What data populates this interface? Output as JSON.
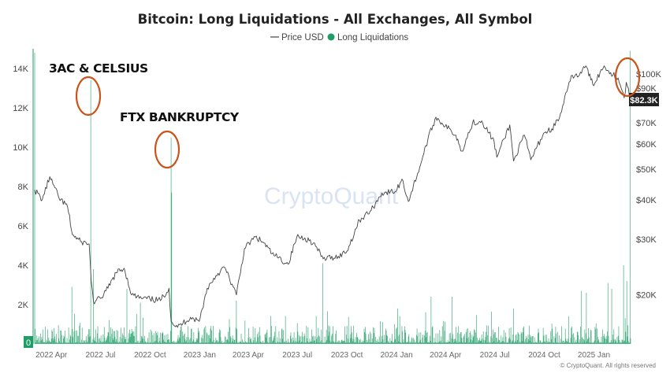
{
  "chart_data": {
    "type": "bar",
    "title": "Bitcoin: Long Liquidations - All Exchanges, All Symbol",
    "legend": {
      "placement": "top-center",
      "entries": [
        {
          "label": "Price USD",
          "color": "#444444",
          "marker": "line"
        },
        {
          "label": "Long Liquidations",
          "color": "#1f9d66",
          "marker": "dot"
        }
      ]
    },
    "x_axis": {
      "start": "2022-03-01",
      "end": "2025-03-10",
      "tick_labels": [
        "2022 Apr",
        "2022 Jul",
        "2022 Oct",
        "2023 Jan",
        "2023 Apr",
        "2023 Jul",
        "2023 Oct",
        "2024 Jan",
        "2024 Apr",
        "2024 Jul",
        "2024 Oct",
        "2025 Jan"
      ],
      "tick_dates": [
        "2022-04-01",
        "2022-07-01",
        "2022-10-01",
        "2023-01-01",
        "2023-04-01",
        "2023-07-01",
        "2023-10-01",
        "2024-01-01",
        "2024-04-01",
        "2024-07-01",
        "2024-10-01",
        "2025-01-01"
      ]
    },
    "y_left": {
      "label": "",
      "min": 0,
      "max": 15000,
      "tick_values": [
        2000,
        4000,
        6000,
        8000,
        10000,
        12000,
        14000
      ],
      "tick_labels": [
        "2K",
        "4K",
        "6K",
        "8K",
        "10K",
        "12K",
        "14K"
      ],
      "zero_marker": "0"
    },
    "y_right": {
      "label": "",
      "scale": "log",
      "min": 14000,
      "max": 120000,
      "tick_values": [
        20000,
        30000,
        40000,
        50000,
        60000,
        70000,
        90000,
        100000
      ],
      "tick_labels": [
        "$20K",
        "$30K",
        "$40K",
        "$50K",
        "$60K",
        "$70K",
        "$90K",
        "$100K"
      ],
      "current_value_label": "$82.3K",
      "current_value": 82300
    },
    "series": [
      {
        "name": "Price USD",
        "type": "line",
        "axis": "right",
        "color": "#444444",
        "points": [
          [
            "2022-03-01",
            43000
          ],
          [
            "2022-03-15",
            40000
          ],
          [
            "2022-03-29",
            47300
          ],
          [
            "2022-04-15",
            40500
          ],
          [
            "2022-05-01",
            38000
          ],
          [
            "2022-05-10",
            31000
          ],
          [
            "2022-05-25",
            29500
          ],
          [
            "2022-06-10",
            29000
          ],
          [
            "2022-06-14",
            22000
          ],
          [
            "2022-06-18",
            19000
          ],
          [
            "2022-07-01",
            19500
          ],
          [
            "2022-07-15",
            21000
          ],
          [
            "2022-07-30",
            23500
          ],
          [
            "2022-08-14",
            24300
          ],
          [
            "2022-08-28",
            20000
          ],
          [
            "2022-09-15",
            19500
          ],
          [
            "2022-10-01",
            19400
          ],
          [
            "2022-10-20",
            19200
          ],
          [
            "2022-11-05",
            21000
          ],
          [
            "2022-11-09",
            16500
          ],
          [
            "2022-11-21",
            15800
          ],
          [
            "2022-12-15",
            17000
          ],
          [
            "2022-12-31",
            16500
          ],
          [
            "2023-01-15",
            21000
          ],
          [
            "2023-01-31",
            23000
          ],
          [
            "2023-02-16",
            24500
          ],
          [
            "2023-03-10",
            20000
          ],
          [
            "2023-03-25",
            28000
          ],
          [
            "2023-04-14",
            30500
          ],
          [
            "2023-04-30",
            29200
          ],
          [
            "2023-05-15",
            27000
          ],
          [
            "2023-06-14",
            25000
          ],
          [
            "2023-06-30",
            30500
          ],
          [
            "2023-07-15",
            30300
          ],
          [
            "2023-07-31",
            29200
          ],
          [
            "2023-08-18",
            26000
          ],
          [
            "2023-09-15",
            26500
          ],
          [
            "2023-10-01",
            27500
          ],
          [
            "2023-10-24",
            34500
          ],
          [
            "2023-11-15",
            37000
          ],
          [
            "2023-12-05",
            42000
          ],
          [
            "2023-12-31",
            42500
          ],
          [
            "2024-01-11",
            46500
          ],
          [
            "2024-01-23",
            39500
          ],
          [
            "2024-02-15",
            52000
          ],
          [
            "2024-02-28",
            62000
          ],
          [
            "2024-03-14",
            73000
          ],
          [
            "2024-03-25",
            70000
          ],
          [
            "2024-04-20",
            64000
          ],
          [
            "2024-05-01",
            57000
          ],
          [
            "2024-05-21",
            70000
          ],
          [
            "2024-06-07",
            71000
          ],
          [
            "2024-06-30",
            61000
          ],
          [
            "2024-07-05",
            54500
          ],
          [
            "2024-07-29",
            69000
          ],
          [
            "2024-08-05",
            53000
          ],
          [
            "2024-08-25",
            64000
          ],
          [
            "2024-09-06",
            53500
          ],
          [
            "2024-09-30",
            65000
          ],
          [
            "2024-10-15",
            67000
          ],
          [
            "2024-10-29",
            72500
          ],
          [
            "2024-11-12",
            88000
          ],
          [
            "2024-11-22",
            99000
          ],
          [
            "2024-12-05",
            99000
          ],
          [
            "2024-12-17",
            106000
          ],
          [
            "2024-12-30",
            92500
          ],
          [
            "2025-01-20",
            106000
          ],
          [
            "2025-02-01",
            101000
          ],
          [
            "2025-02-15",
            97000
          ],
          [
            "2025-02-26",
            84000
          ],
          [
            "2025-03-02",
            94000
          ],
          [
            "2025-03-10",
            82300
          ]
        ]
      },
      {
        "name": "Long Liquidations",
        "type": "bar",
        "axis": "left",
        "color": "#1f9d66",
        "spikes": [
          [
            "2022-03-01",
            14800
          ],
          [
            "2022-06-13",
            13400
          ],
          [
            "2022-11-09",
            10500
          ],
          [
            "2022-11-10",
            7700
          ],
          [
            "2022-05-09",
            2900
          ],
          [
            "2022-06-18",
            3800
          ],
          [
            "2022-08-19",
            2800
          ],
          [
            "2022-09-13",
            2100
          ],
          [
            "2023-03-10",
            2200
          ],
          [
            "2023-08-17",
            4100
          ],
          [
            "2024-01-03",
            1800
          ],
          [
            "2024-03-05",
            2400
          ],
          [
            "2024-04-13",
            2400
          ],
          [
            "2024-08-05",
            1800
          ],
          [
            "2024-12-09",
            2700
          ],
          [
            "2024-12-18",
            2600
          ],
          [
            "2025-01-27",
            3100
          ],
          [
            "2025-02-03",
            2800
          ],
          [
            "2025-02-25",
            4000
          ],
          [
            "2025-03-03",
            3200
          ],
          [
            "2025-03-09",
            14900
          ]
        ]
      }
    ],
    "annotations": [
      {
        "label": "3AC & CELSIUS",
        "target": "2022-06-13",
        "value": 13400
      },
      {
        "label": "FTX BANKRUPTCY",
        "target": "2022-11-09",
        "value": 10500
      }
    ],
    "watermark": "CryptoQuant",
    "copyright": "© CryptoQuant. All rights reserved",
    "grid": false
  }
}
